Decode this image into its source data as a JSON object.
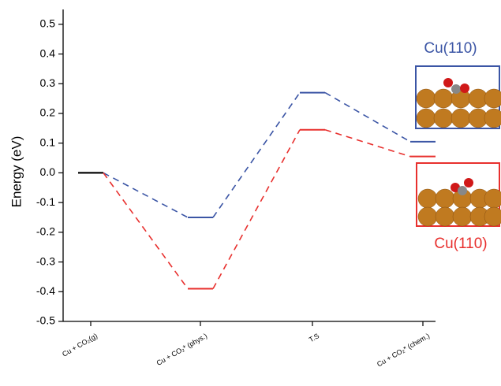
{
  "chart_data": {
    "type": "energy-levels",
    "y_label": "Energy (eV)",
    "categories": [
      "Cu + CO₂(g)",
      "Cu + CO₂* (phys.)",
      "T.S",
      "Cu + CO₂* (chem.)"
    ],
    "series": [
      {
        "name": "Cu(110)",
        "color": "#3b55a5",
        "values": [
          0,
          -0.15,
          0.27,
          0.105
        ]
      },
      {
        "name": "Cu(110)",
        "color": "#e8302e",
        "values": [
          0,
          -0.39,
          0.145,
          0.055
        ]
      }
    ],
    "ylim": [
      -0.5,
      0.55
    ],
    "yticks": [
      -0.5,
      -0.4,
      -0.3,
      -0.2,
      -0.1,
      {
        "value": 0,
        "label": "0.0"
      },
      0.1,
      0.2,
      0.3,
      0.4,
      0.5
    ]
  }
}
